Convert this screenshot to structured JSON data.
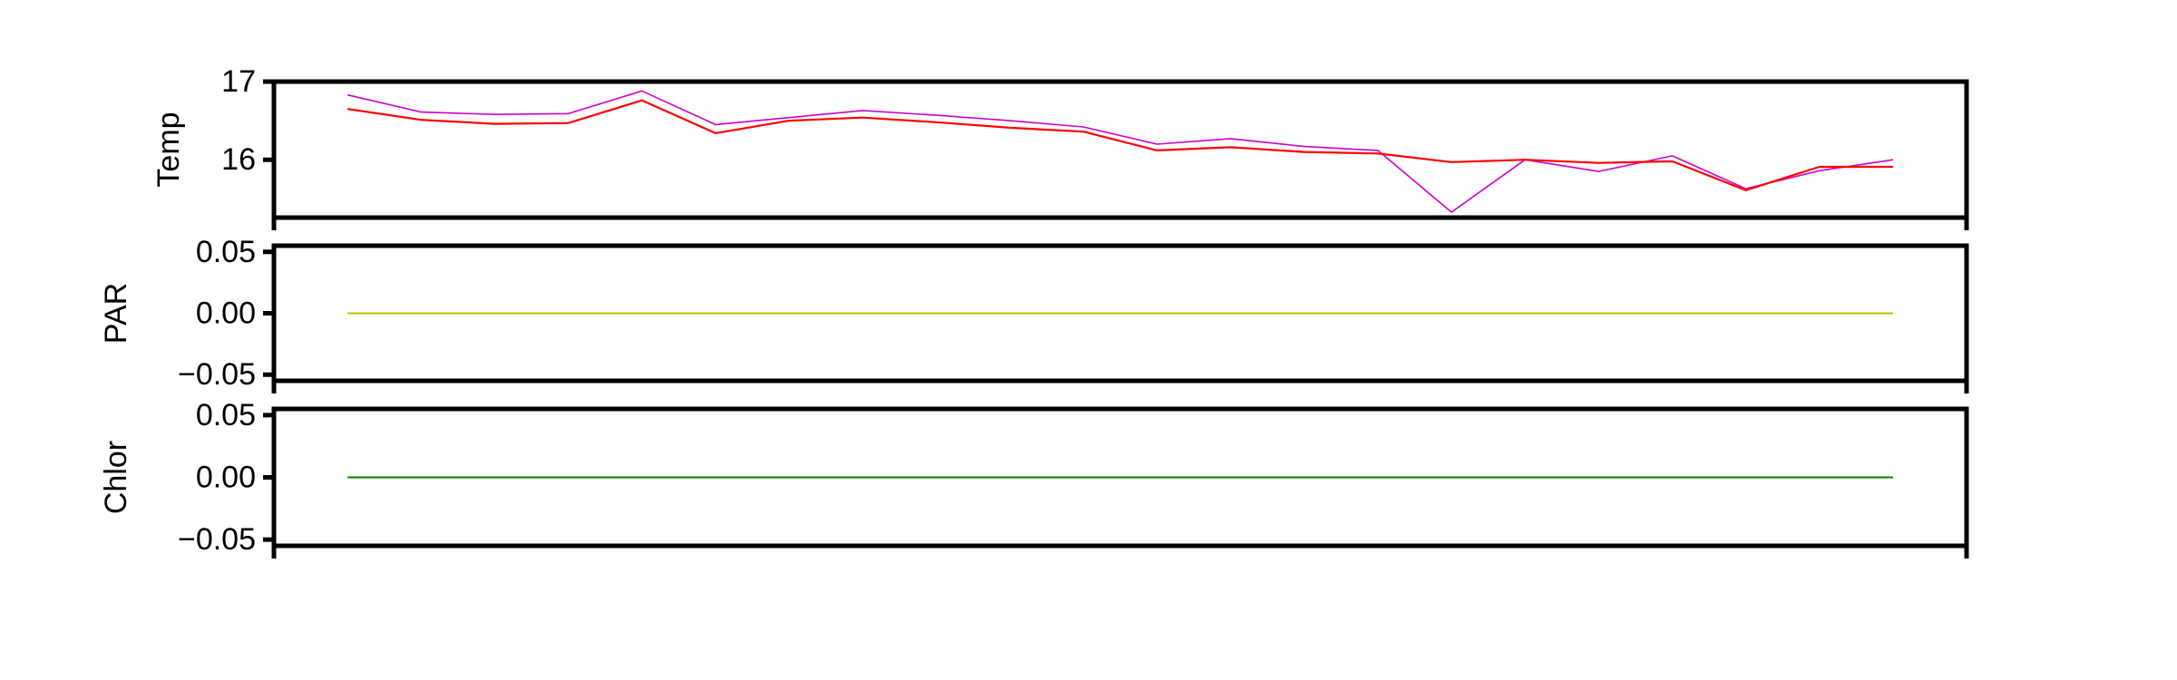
{
  "chart_data": [
    {
      "type": "line",
      "ylabel": "Temp",
      "ylim": [
        15.26,
        17.0
      ],
      "yticks": [
        {
          "value": 16,
          "label": "16"
        },
        {
          "value": 17,
          "label": "17"
        }
      ],
      "x": [
        1,
        2,
        3,
        4,
        5,
        6,
        7,
        8,
        9,
        10,
        11,
        12,
        13,
        14,
        15,
        16,
        17,
        18,
        19,
        20,
        21,
        22
      ],
      "series": [
        {
          "color": "#cc00cc",
          "width": 1.6,
          "values": [
            16.83,
            16.61,
            16.58,
            16.59,
            16.88,
            16.45,
            16.54,
            16.63,
            16.57,
            16.5,
            16.42,
            16.2,
            16.27,
            16.17,
            16.12,
            15.33,
            16.0,
            15.85,
            16.05,
            15.63,
            15.86,
            16.0
          ]
        },
        {
          "color": "#ff0000",
          "width": 2.2,
          "values": [
            16.65,
            16.51,
            16.46,
            16.47,
            16.76,
            16.34,
            16.5,
            16.54,
            16.48,
            16.41,
            16.36,
            16.12,
            16.16,
            16.1,
            16.08,
            15.97,
            16.0,
            15.96,
            15.98,
            15.61,
            15.91,
            15.91
          ]
        }
      ]
    },
    {
      "type": "line",
      "ylabel": "PAR",
      "ylim": [
        -0.055,
        0.055
      ],
      "yticks": [
        {
          "value": -0.05,
          "label": "−0.05"
        },
        {
          "value": 0.0,
          "label": "0.00"
        },
        {
          "value": 0.05,
          "label": "0.05"
        }
      ],
      "x": [
        1,
        22
      ],
      "series": [
        {
          "color": "#bfbf00",
          "width": 2.0,
          "values": [
            0.0,
            0.0
          ]
        }
      ]
    },
    {
      "type": "line",
      "ylabel": "Chlor",
      "ylim": [
        -0.055,
        0.055
      ],
      "yticks": [
        {
          "value": -0.05,
          "label": "−0.05"
        },
        {
          "value": 0.0,
          "label": "0.00"
        },
        {
          "value": 0.05,
          "label": "0.05"
        }
      ],
      "x": [
        1,
        22
      ],
      "series": [
        {
          "color": "#008000",
          "width": 2.0,
          "values": [
            0.0,
            0.0
          ]
        }
      ]
    }
  ]
}
